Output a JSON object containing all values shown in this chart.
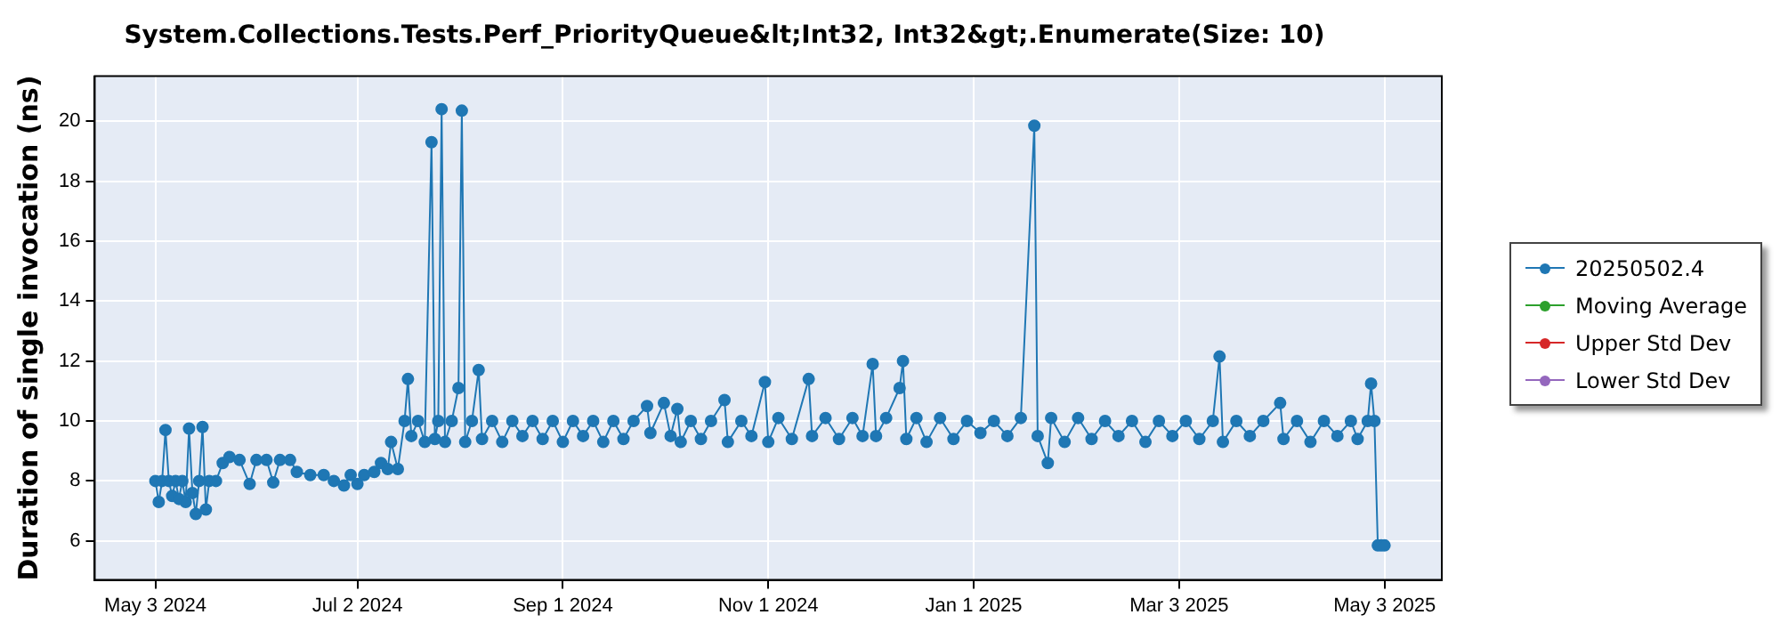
{
  "chart_data": {
    "type": "line",
    "title": "System.Collections.Tests.Perf_PriorityQueue&lt;Int32, Int32&gt;.Enumerate(Size: 10)",
    "ylabel": "Duration of single invocation (ns)",
    "xlim": [
      "2024-04-15",
      "2025-05-20"
    ],
    "xticks": [
      {
        "value": "2024-05-03",
        "label": "May 3 2024"
      },
      {
        "value": "2024-07-02",
        "label": "Jul 2 2024"
      },
      {
        "value": "2024-09-01",
        "label": "Sep 1 2024"
      },
      {
        "value": "2024-11-01",
        "label": "Nov 1 2024"
      },
      {
        "value": "2025-01-01",
        "label": "Jan 1 2025"
      },
      {
        "value": "2025-03-03",
        "label": "Mar 3 2025"
      },
      {
        "value": "2025-05-03",
        "label": "May 3 2025"
      }
    ],
    "ylim": [
      4.7,
      21.5
    ],
    "yticks": [
      6,
      8,
      10,
      12,
      14,
      16,
      18,
      20
    ],
    "grid": true,
    "legend": "right",
    "marker": "circle",
    "line_style": "solid",
    "series": [
      {
        "name": "20250502.4",
        "color": "#1f77b4",
        "x": [
          "2024-05-03",
          "2024-05-04",
          "2024-05-05",
          "2024-05-06",
          "2024-05-07",
          "2024-05-08",
          "2024-05-09",
          "2024-05-10",
          "2024-05-11",
          "2024-05-12",
          "2024-05-13",
          "2024-05-14",
          "2024-05-15",
          "2024-05-16",
          "2024-05-17",
          "2024-05-18",
          "2024-05-19",
          "2024-05-21",
          "2024-05-23",
          "2024-05-25",
          "2024-05-28",
          "2024-05-31",
          "2024-06-02",
          "2024-06-05",
          "2024-06-07",
          "2024-06-09",
          "2024-06-12",
          "2024-06-14",
          "2024-06-18",
          "2024-06-22",
          "2024-06-25",
          "2024-06-28",
          "2024-06-30",
          "2024-07-02",
          "2024-07-04",
          "2024-07-07",
          "2024-07-09",
          "2024-07-11",
          "2024-07-12",
          "2024-07-14",
          "2024-07-16",
          "2024-07-17",
          "2024-07-18",
          "2024-07-20",
          "2024-07-22",
          "2024-07-24",
          "2024-07-25",
          "2024-07-26",
          "2024-07-27",
          "2024-07-28",
          "2024-07-30",
          "2024-08-01",
          "2024-08-02",
          "2024-08-03",
          "2024-08-05",
          "2024-08-07",
          "2024-08-08",
          "2024-08-11",
          "2024-08-14",
          "2024-08-17",
          "2024-08-20",
          "2024-08-23",
          "2024-08-26",
          "2024-08-29",
          "2024-09-01",
          "2024-09-04",
          "2024-09-07",
          "2024-09-10",
          "2024-09-13",
          "2024-09-16",
          "2024-09-19",
          "2024-09-22",
          "2024-09-26",
          "2024-09-27",
          "2024-10-01",
          "2024-10-03",
          "2024-10-05",
          "2024-10-06",
          "2024-10-09",
          "2024-10-12",
          "2024-10-15",
          "2024-10-19",
          "2024-10-20",
          "2024-10-24",
          "2024-10-27",
          "2024-10-31",
          "2024-11-01",
          "2024-11-04",
          "2024-11-08",
          "2024-11-13",
          "2024-11-14",
          "2024-11-18",
          "2024-11-22",
          "2024-11-26",
          "2024-11-29",
          "2024-12-02",
          "2024-12-03",
          "2024-12-06",
          "2024-12-10",
          "2024-12-11",
          "2024-12-12",
          "2024-12-15",
          "2024-12-18",
          "2024-12-22",
          "2024-12-26",
          "2024-12-30",
          "2025-01-03",
          "2025-01-07",
          "2025-01-11",
          "2025-01-15",
          "2025-01-19",
          "2025-01-20",
          "2025-01-23",
          "2025-01-24",
          "2025-01-28",
          "2025-02-01",
          "2025-02-05",
          "2025-02-09",
          "2025-02-13",
          "2025-02-17",
          "2025-02-21",
          "2025-02-25",
          "2025-03-01",
          "2025-03-05",
          "2025-03-09",
          "2025-03-13",
          "2025-03-15",
          "2025-03-16",
          "2025-03-20",
          "2025-03-24",
          "2025-03-28",
          "2025-04-02",
          "2025-04-03",
          "2025-04-07",
          "2025-04-11",
          "2025-04-15",
          "2025-04-19",
          "2025-04-23",
          "2025-04-25",
          "2025-04-28",
          "2025-04-29",
          "2025-04-30",
          "2025-05-01",
          "2025-05-02",
          "2025-05-03"
        ],
        "values": [
          8.0,
          7.3,
          8.0,
          9.7,
          8.0,
          7.5,
          8.0,
          7.4,
          8.0,
          7.3,
          9.75,
          7.6,
          6.9,
          8.0,
          9.8,
          7.05,
          8.0,
          8.0,
          8.6,
          8.8,
          8.7,
          7.9,
          8.7,
          8.7,
          7.95,
          8.7,
          8.7,
          8.3,
          8.2,
          8.2,
          8.0,
          7.85,
          8.2,
          7.9,
          8.2,
          8.3,
          8.6,
          8.4,
          9.3,
          8.4,
          10.0,
          11.4,
          9.5,
          10.0,
          9.3,
          19.3,
          9.4,
          10.0,
          20.4,
          9.3,
          10.0,
          11.1,
          20.35,
          9.3,
          10.0,
          11.7,
          9.4,
          10.0,
          9.3,
          10.0,
          9.5,
          10.0,
          9.4,
          10.0,
          9.3,
          10.0,
          9.5,
          10.0,
          9.3,
          10.0,
          9.4,
          10.0,
          10.5,
          9.6,
          10.6,
          9.5,
          10.4,
          9.3,
          10.0,
          9.4,
          10.0,
          10.7,
          9.3,
          10.0,
          9.5,
          11.3,
          9.3,
          10.1,
          9.4,
          11.4,
          9.5,
          10.1,
          9.4,
          10.1,
          9.5,
          11.9,
          9.5,
          10.1,
          11.1,
          12.0,
          9.4,
          10.1,
          9.3,
          10.1,
          9.4,
          10.0,
          9.6,
          10.0,
          9.5,
          10.1,
          19.85,
          9.5,
          8.6,
          10.1,
          9.3,
          10.1,
          9.4,
          10.0,
          9.5,
          10.0,
          9.3,
          10.0,
          9.5,
          10.0,
          9.4,
          10.0,
          12.15,
          9.3,
          10.0,
          9.5,
          10.0,
          10.6,
          9.4,
          10.0,
          9.3,
          10.0,
          9.5,
          10.0,
          9.4,
          10.0,
          11.25,
          10.0,
          5.85,
          5.85,
          5.85
        ]
      },
      {
        "name": "Moving Average",
        "color": "#2ca02c"
      },
      {
        "name": "Upper Std Dev",
        "color": "#d62728"
      },
      {
        "name": "Lower Std Dev",
        "color": "#9467bd"
      }
    ]
  }
}
